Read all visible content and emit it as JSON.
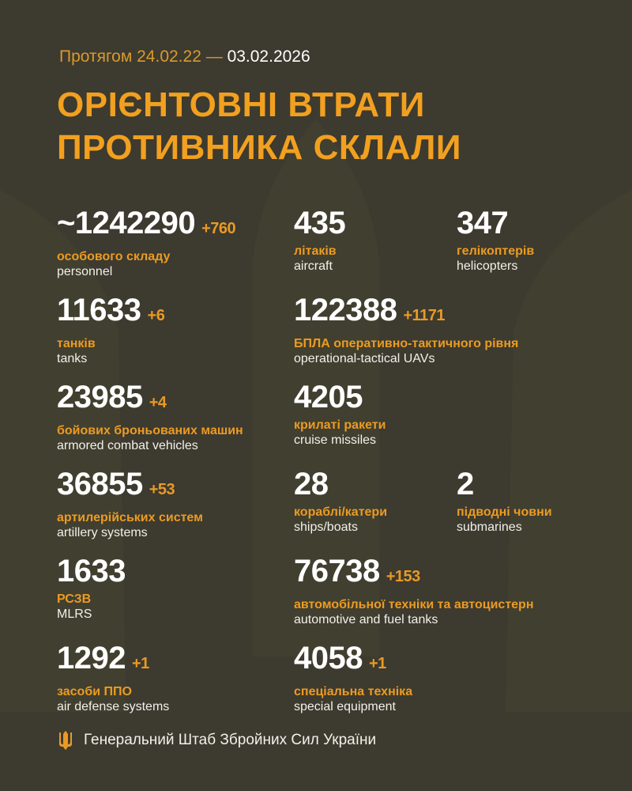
{
  "header": {
    "period_prefix": "Протягом 24.02.22 —",
    "period_end": "03.02.2026",
    "title_line1": "ОРІЄНТОВНІ ВТРАТИ",
    "title_line2": "ПРОТИВНИКА СКЛАЛИ"
  },
  "stats": [
    {
      "value": "~1242290",
      "delta": "+760",
      "uk": "особового складу",
      "en": "personnel"
    },
    {
      "value": "435",
      "delta": "",
      "uk": "літаків",
      "en": "aircraft"
    },
    {
      "value": "347",
      "delta": "",
      "uk": "гелікоптерів",
      "en": "helicopters"
    },
    {
      "value": "11633",
      "delta": "+6",
      "uk": "танків",
      "en": "tanks"
    },
    {
      "value": "122388",
      "delta": "+1171",
      "uk": "БПЛА оперативно-тактичного рівня",
      "en": "operational-tactical UAVs"
    },
    {
      "value": "23985",
      "delta": "+4",
      "uk": "бойових броньованих машин",
      "en": "armored combat vehicles"
    },
    {
      "value": "4205",
      "delta": "",
      "uk": "крилаті ракети",
      "en": "cruise missiles"
    },
    {
      "value": "36855",
      "delta": "+53",
      "uk": "артилерійських систем",
      "en": "artillery systems"
    },
    {
      "value": "28",
      "delta": "",
      "uk": "кораблі/катери",
      "en": "ships/boats"
    },
    {
      "value": "2",
      "delta": "",
      "uk": "підводні човни",
      "en": "submarines"
    },
    {
      "value": "1633",
      "delta": "",
      "uk": "РСЗВ",
      "en": "MLRS"
    },
    {
      "value": "76738",
      "delta": "+153",
      "uk": "автомобільної техніки та автоцистерн",
      "en": "automotive and fuel tanks"
    },
    {
      "value": "1292",
      "delta": "+1",
      "uk": "засоби ППО",
      "en": "air defense systems"
    },
    {
      "value": "4058",
      "delta": "+1",
      "uk": "спеціальна техніка",
      "en": "special equipment"
    }
  ],
  "footer": {
    "text": "Генеральний Штаб Збройних Сил України",
    "icon": "trident-icon"
  },
  "colors": {
    "background": "#3d3a2f",
    "accent": "#f2a01f",
    "text": "#ffffff"
  }
}
